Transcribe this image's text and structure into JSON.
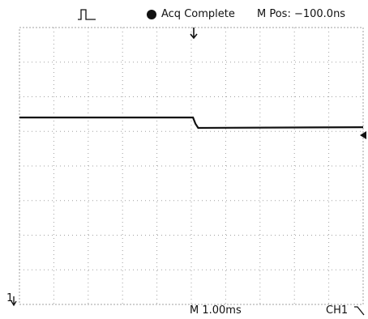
{
  "header": {
    "trigger_icon": "pulse-trigger-icon",
    "status_icon": "filled-circle-icon",
    "status_text": "Acq Complete",
    "position_text": "M Pos: −100.0ns"
  },
  "footer": {
    "timebase_text": "M 1.00ms",
    "channel_text": "CH1",
    "trigger_slope_icon": "falling-edge-icon"
  },
  "markers": {
    "channel_marker_text": "1"
  },
  "colors": {
    "background": "#ffffff",
    "grid": "#a0a0a0",
    "trace": "#111111"
  },
  "chart_data": {
    "type": "line",
    "title": "",
    "xlabel": "",
    "ylabel": "",
    "grid": true,
    "divisions": {
      "x": 10,
      "y": 8
    },
    "xlim": [
      0,
      10
    ],
    "ylim": [
      0,
      8
    ],
    "series": [
      {
        "x": [
          0,
          5.05,
          5.12,
          5.2,
          10
        ],
        "y": [
          5.4,
          5.4,
          5.22,
          5.1,
          5.12
        ]
      }
    ]
  }
}
